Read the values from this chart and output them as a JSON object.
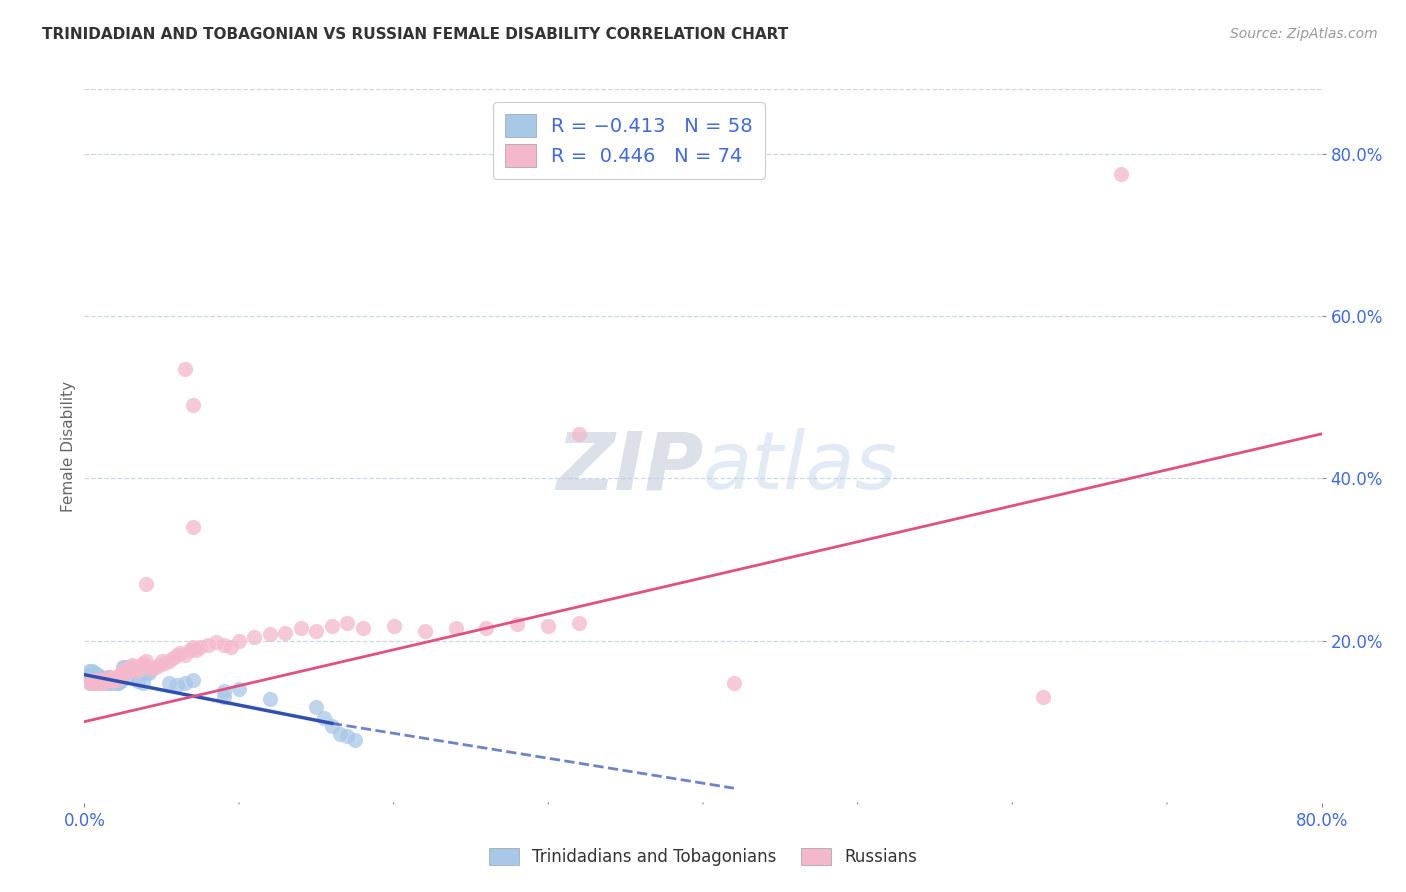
{
  "title": "TRINIDADIAN AND TOBAGONIAN VS RUSSIAN FEMALE DISABILITY CORRELATION CHART",
  "source": "Source: ZipAtlas.com",
  "ylabel": "Female Disability",
  "watermark_zip": "ZIP",
  "watermark_atlas": "atlas",
  "blue_color": "#a8c8e8",
  "pink_color": "#f4b8cc",
  "blue_line_color": "#3050b0",
  "pink_line_color": "#e05080",
  "blue_scatter": [
    [
      0.001,
      0.155
    ],
    [
      0.002,
      0.158
    ],
    [
      0.003,
      0.152
    ],
    [
      0.003,
      0.162
    ],
    [
      0.004,
      0.148
    ],
    [
      0.004,
      0.155
    ],
    [
      0.005,
      0.15
    ],
    [
      0.005,
      0.162
    ],
    [
      0.006,
      0.148
    ],
    [
      0.006,
      0.155
    ],
    [
      0.007,
      0.152
    ],
    [
      0.007,
      0.16
    ],
    [
      0.008,
      0.15
    ],
    [
      0.008,
      0.155
    ],
    [
      0.009,
      0.148
    ],
    [
      0.009,
      0.158
    ],
    [
      0.01,
      0.15
    ],
    [
      0.01,
      0.155
    ],
    [
      0.011,
      0.148
    ],
    [
      0.011,
      0.152
    ],
    [
      0.012,
      0.148
    ],
    [
      0.012,
      0.153
    ],
    [
      0.013,
      0.15
    ],
    [
      0.014,
      0.148
    ],
    [
      0.015,
      0.15
    ],
    [
      0.015,
      0.155
    ],
    [
      0.016,
      0.148
    ],
    [
      0.017,
      0.15
    ],
    [
      0.018,
      0.148
    ],
    [
      0.019,
      0.152
    ],
    [
      0.02,
      0.15
    ],
    [
      0.021,
      0.148
    ],
    [
      0.022,
      0.148
    ],
    [
      0.023,
      0.15
    ],
    [
      0.024,
      0.15
    ],
    [
      0.025,
      0.168
    ],
    [
      0.026,
      0.168
    ],
    [
      0.028,
      0.162
    ],
    [
      0.03,
      0.158
    ],
    [
      0.035,
      0.15
    ],
    [
      0.038,
      0.148
    ],
    [
      0.04,
      0.16
    ],
    [
      0.042,
      0.16
    ],
    [
      0.055,
      0.148
    ],
    [
      0.06,
      0.145
    ],
    [
      0.065,
      0.148
    ],
    [
      0.07,
      0.152
    ],
    [
      0.09,
      0.138
    ],
    [
      0.09,
      0.13
    ],
    [
      0.1,
      0.14
    ],
    [
      0.12,
      0.128
    ],
    [
      0.15,
      0.118
    ],
    [
      0.155,
      0.105
    ],
    [
      0.16,
      0.095
    ],
    [
      0.165,
      0.085
    ],
    [
      0.17,
      0.082
    ],
    [
      0.175,
      0.078
    ]
  ],
  "pink_scatter": [
    [
      0.003,
      0.148
    ],
    [
      0.004,
      0.15
    ],
    [
      0.005,
      0.152
    ],
    [
      0.006,
      0.148
    ],
    [
      0.007,
      0.15
    ],
    [
      0.008,
      0.152
    ],
    [
      0.009,
      0.148
    ],
    [
      0.01,
      0.152
    ],
    [
      0.011,
      0.15
    ],
    [
      0.012,
      0.148
    ],
    [
      0.013,
      0.152
    ],
    [
      0.014,
      0.15
    ],
    [
      0.015,
      0.155
    ],
    [
      0.016,
      0.155
    ],
    [
      0.017,
      0.152
    ],
    [
      0.018,
      0.153
    ],
    [
      0.019,
      0.15
    ],
    [
      0.02,
      0.155
    ],
    [
      0.021,
      0.152
    ],
    [
      0.022,
      0.155
    ],
    [
      0.023,
      0.158
    ],
    [
      0.024,
      0.16
    ],
    [
      0.025,
      0.162
    ],
    [
      0.026,
      0.165
    ],
    [
      0.027,
      0.16
    ],
    [
      0.028,
      0.162
    ],
    [
      0.03,
      0.168
    ],
    [
      0.031,
      0.17
    ],
    [
      0.032,
      0.165
    ],
    [
      0.033,
      0.168
    ],
    [
      0.034,
      0.162
    ],
    [
      0.035,
      0.165
    ],
    [
      0.036,
      0.168
    ],
    [
      0.037,
      0.17
    ],
    [
      0.038,
      0.172
    ],
    [
      0.04,
      0.175
    ],
    [
      0.042,
      0.168
    ],
    [
      0.044,
      0.165
    ],
    [
      0.046,
      0.168
    ],
    [
      0.048,
      0.17
    ],
    [
      0.05,
      0.175
    ],
    [
      0.052,
      0.172
    ],
    [
      0.055,
      0.175
    ],
    [
      0.057,
      0.178
    ],
    [
      0.06,
      0.182
    ],
    [
      0.062,
      0.185
    ],
    [
      0.065,
      0.182
    ],
    [
      0.068,
      0.188
    ],
    [
      0.07,
      0.192
    ],
    [
      0.072,
      0.188
    ],
    [
      0.075,
      0.192
    ],
    [
      0.08,
      0.195
    ],
    [
      0.085,
      0.198
    ],
    [
      0.09,
      0.195
    ],
    [
      0.095,
      0.192
    ],
    [
      0.1,
      0.2
    ],
    [
      0.11,
      0.205
    ],
    [
      0.12,
      0.208
    ],
    [
      0.13,
      0.21
    ],
    [
      0.14,
      0.215
    ],
    [
      0.15,
      0.212
    ],
    [
      0.16,
      0.218
    ],
    [
      0.17,
      0.222
    ],
    [
      0.18,
      0.215
    ],
    [
      0.2,
      0.218
    ],
    [
      0.22,
      0.212
    ],
    [
      0.24,
      0.215
    ],
    [
      0.26,
      0.215
    ],
    [
      0.28,
      0.22
    ],
    [
      0.3,
      0.218
    ],
    [
      0.32,
      0.222
    ],
    [
      0.04,
      0.27
    ],
    [
      0.07,
      0.34
    ],
    [
      0.065,
      0.535
    ],
    [
      0.07,
      0.49
    ],
    [
      0.32,
      0.455
    ],
    [
      0.42,
      0.148
    ],
    [
      0.67,
      0.775
    ],
    [
      0.62,
      0.13
    ]
  ],
  "blue_line_solid": {
    "x0": 0.0,
    "x1": 0.16,
    "y0": 0.158,
    "y1": 0.098
  },
  "blue_line_dashed": {
    "x0": 0.16,
    "x1": 0.42,
    "y0": 0.098,
    "y1": 0.018
  },
  "pink_line": {
    "x0": 0.0,
    "x1": 0.8,
    "y0": 0.1,
    "y1": 0.455
  },
  "xlim": [
    0.0,
    0.8
  ],
  "ylim": [
    0.0,
    0.88
  ],
  "ytick_vals": [
    0.2,
    0.4,
    0.6,
    0.8
  ],
  "ytick_labels": [
    "20.0%",
    "40.0%",
    "60.0%",
    "80.0%"
  ],
  "xtick_left_label": "0.0%",
  "xtick_right_label": "80.0%",
  "background_color": "#ffffff",
  "label_color": "#4169e1",
  "grid_color": "#c8d8e8"
}
